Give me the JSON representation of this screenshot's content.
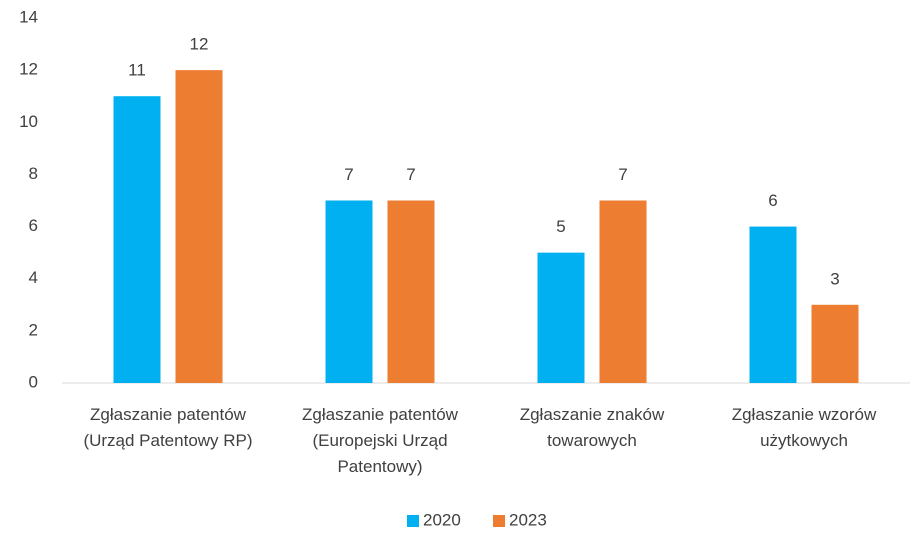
{
  "chart_data": {
    "type": "bar",
    "categories": [
      "Zgłaszanie patentów (Urząd Patentowy RP)",
      "Zgłaszanie patentów (Europejski Urząd Patentowy)",
      "Zgłaszanie znaków towarowych",
      "Zgłaszanie wzorów użytkowych"
    ],
    "series": [
      {
        "name": "2020",
        "color": "#00b0f0",
        "values": [
          11,
          7,
          5,
          6
        ]
      },
      {
        "name": "2023",
        "color": "#ed7d31",
        "values": [
          12,
          7,
          7,
          3
        ]
      }
    ],
    "ylim": [
      0,
      14
    ],
    "yticks": [
      0,
      2,
      4,
      6,
      8,
      10,
      12,
      14
    ],
    "grid": false,
    "legend": "bottom"
  }
}
